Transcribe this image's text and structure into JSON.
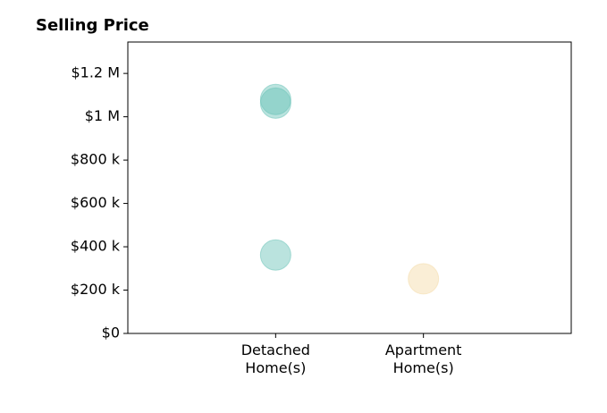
{
  "chart_data": {
    "type": "scatter",
    "title": "Selling Price",
    "series": [
      {
        "name": "Detached Home(s)",
        "color": "#66c2b5",
        "values": [
          1080000,
          1063000,
          362000
        ]
      },
      {
        "name": "Apartment Home(s)",
        "color": "#f3d9a4",
        "values": [
          252000
        ]
      }
    ],
    "ylim": [
      0,
      1345000
    ],
    "yticks": [
      {
        "value": 0,
        "label": "$0"
      },
      {
        "value": 200000,
        "label": "$200 k"
      },
      {
        "value": 400000,
        "label": "$400 k"
      },
      {
        "value": 600000,
        "label": "$600 k"
      },
      {
        "value": 800000,
        "label": "$800 k"
      },
      {
        "value": 1000000,
        "label": "$1 M"
      },
      {
        "value": 1200000,
        "label": "$1.2 M"
      }
    ]
  }
}
